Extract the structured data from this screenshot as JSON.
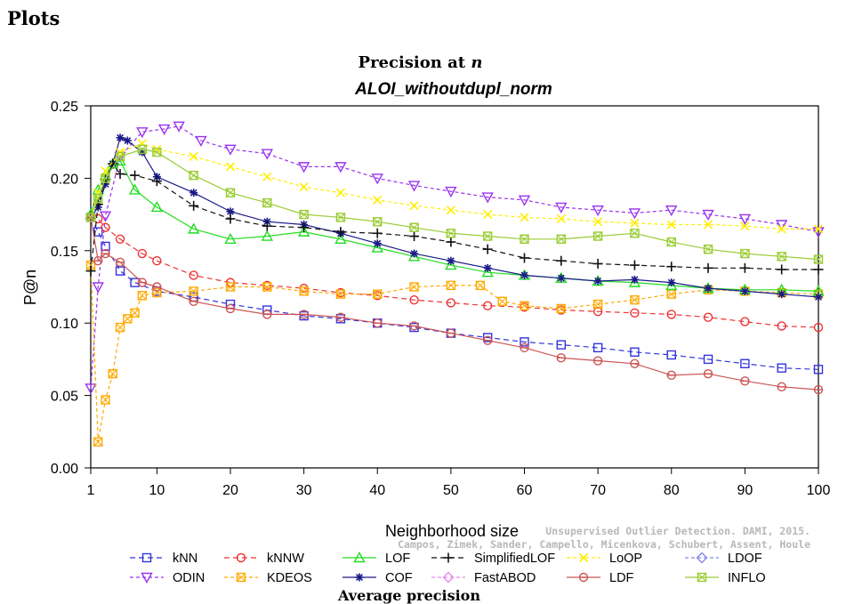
{
  "page": {
    "heading": "Plots"
  },
  "watermark": {
    "line1": "Unsupervised Outlier Detection. DAMI, 2015.",
    "line2": "Campos, Zimek, Sander, Campello, Micenkova, Schubert, Assent, Houle"
  },
  "chart_data": {
    "type": "line",
    "title_prefix": "Precision at ",
    "title_var": "n",
    "subtitle": "ALOI_withoutdupl_norm",
    "xlabel": "Neighborhood size",
    "ylabel": "P@n",
    "xlim": [
      1,
      100
    ],
    "ylim": [
      0,
      0.25
    ],
    "xticks": [
      1,
      10,
      20,
      30,
      40,
      50,
      60,
      70,
      80,
      90,
      100
    ],
    "yticks": [
      0.0,
      0.05,
      0.1,
      0.15,
      0.2,
      0.25
    ],
    "grid": false,
    "legend_position": "bottom",
    "series": [
      {
        "name": "kNN",
        "color": "#3333dd",
        "marker": "square",
        "dash": "6,4",
        "points": [
          [
            1,
            0.173
          ],
          [
            2,
            0.163
          ],
          [
            3,
            0.153
          ],
          [
            5,
            0.136
          ],
          [
            7,
            0.128
          ],
          [
            10,
            0.122
          ],
          [
            15,
            0.118
          ],
          [
            20,
            0.113
          ],
          [
            25,
            0.109
          ],
          [
            30,
            0.105
          ],
          [
            35,
            0.103
          ],
          [
            40,
            0.1
          ],
          [
            45,
            0.097
          ],
          [
            50,
            0.093
          ],
          [
            55,
            0.09
          ],
          [
            60,
            0.087
          ],
          [
            65,
            0.085
          ],
          [
            70,
            0.083
          ],
          [
            75,
            0.08
          ],
          [
            80,
            0.078
          ],
          [
            85,
            0.075
          ],
          [
            90,
            0.072
          ],
          [
            95,
            0.069
          ],
          [
            100,
            0.068
          ]
        ]
      },
      {
        "name": "ODIN",
        "color": "#9933ee",
        "marker": "triangle-down",
        "dash": "4,3",
        "points": [
          [
            1,
            0.055
          ],
          [
            2,
            0.125
          ],
          [
            3,
            0.174
          ],
          [
            5,
            0.215
          ],
          [
            8,
            0.232
          ],
          [
            11,
            0.234
          ],
          [
            13,
            0.236
          ],
          [
            16,
            0.226
          ],
          [
            20,
            0.22
          ],
          [
            25,
            0.217
          ],
          [
            30,
            0.208
          ],
          [
            35,
            0.208
          ],
          [
            40,
            0.2
          ],
          [
            45,
            0.195
          ],
          [
            50,
            0.191
          ],
          [
            55,
            0.187
          ],
          [
            60,
            0.185
          ],
          [
            65,
            0.18
          ],
          [
            70,
            0.178
          ],
          [
            75,
            0.176
          ],
          [
            80,
            0.178
          ],
          [
            85,
            0.175
          ],
          [
            90,
            0.172
          ],
          [
            95,
            0.168
          ],
          [
            100,
            0.163
          ]
        ]
      },
      {
        "name": "kNNW",
        "color": "#ee3333",
        "marker": "circle",
        "dash": "6,4",
        "points": [
          [
            1,
            0.173
          ],
          [
            2,
            0.172
          ],
          [
            3,
            0.166
          ],
          [
            5,
            0.158
          ],
          [
            8,
            0.148
          ],
          [
            10,
            0.143
          ],
          [
            15,
            0.133
          ],
          [
            20,
            0.128
          ],
          [
            25,
            0.126
          ],
          [
            30,
            0.124
          ],
          [
            35,
            0.121
          ],
          [
            40,
            0.119
          ],
          [
            45,
            0.116
          ],
          [
            50,
            0.114
          ],
          [
            55,
            0.112
          ],
          [
            60,
            0.111
          ],
          [
            65,
            0.109
          ],
          [
            70,
            0.108
          ],
          [
            75,
            0.107
          ],
          [
            80,
            0.106
          ],
          [
            85,
            0.104
          ],
          [
            90,
            0.101
          ],
          [
            95,
            0.098
          ],
          [
            100,
            0.097
          ]
        ]
      },
      {
        "name": "KDEOS",
        "color": "#ffaa00",
        "marker": "square-x",
        "dash": "4,3",
        "points": [
          [
            1,
            0.14
          ],
          [
            2,
            0.018
          ],
          [
            3,
            0.047
          ],
          [
            4,
            0.065
          ],
          [
            5,
            0.097
          ],
          [
            6,
            0.103
          ],
          [
            7,
            0.107
          ],
          [
            8,
            0.119
          ],
          [
            10,
            0.121
          ],
          [
            15,
            0.122
          ],
          [
            20,
            0.125
          ],
          [
            25,
            0.125
          ],
          [
            30,
            0.122
          ],
          [
            35,
            0.12
          ],
          [
            40,
            0.12
          ],
          [
            45,
            0.125
          ],
          [
            50,
            0.126
          ],
          [
            54,
            0.126
          ],
          [
            57,
            0.115
          ],
          [
            60,
            0.112
          ],
          [
            65,
            0.11
          ],
          [
            70,
            0.113
          ],
          [
            75,
            0.116
          ],
          [
            80,
            0.12
          ],
          [
            85,
            0.123
          ],
          [
            90,
            0.122
          ],
          [
            95,
            0.121
          ],
          [
            100,
            0.12
          ]
        ]
      },
      {
        "name": "LOF",
        "color": "#22dd22",
        "marker": "triangle-up",
        "dash": "",
        "points": [
          [
            1,
            0.175
          ],
          [
            2,
            0.192
          ],
          [
            3,
            0.202
          ],
          [
            4,
            0.21
          ],
          [
            5,
            0.212
          ],
          [
            7,
            0.192
          ],
          [
            10,
            0.18
          ],
          [
            15,
            0.165
          ],
          [
            20,
            0.158
          ],
          [
            25,
            0.16
          ],
          [
            30,
            0.163
          ],
          [
            35,
            0.158
          ],
          [
            40,
            0.152
          ],
          [
            45,
            0.146
          ],
          [
            50,
            0.14
          ],
          [
            55,
            0.135
          ],
          [
            60,
            0.133
          ],
          [
            65,
            0.131
          ],
          [
            70,
            0.129
          ],
          [
            75,
            0.128
          ],
          [
            80,
            0.126
          ],
          [
            85,
            0.124
          ],
          [
            90,
            0.123
          ],
          [
            95,
            0.123
          ],
          [
            100,
            0.122
          ]
        ]
      },
      {
        "name": "COF",
        "color": "#1a1a88",
        "marker": "star",
        "dash": "",
        "points": [
          [
            1,
            0.173
          ],
          [
            2,
            0.18
          ],
          [
            3,
            0.196
          ],
          [
            4,
            0.21
          ],
          [
            5,
            0.228
          ],
          [
            6,
            0.226
          ],
          [
            8,
            0.218
          ],
          [
            10,
            0.201
          ],
          [
            15,
            0.19
          ],
          [
            20,
            0.177
          ],
          [
            25,
            0.17
          ],
          [
            30,
            0.168
          ],
          [
            35,
            0.162
          ],
          [
            40,
            0.155
          ],
          [
            45,
            0.148
          ],
          [
            50,
            0.143
          ],
          [
            55,
            0.138
          ],
          [
            60,
            0.133
          ],
          [
            65,
            0.131
          ],
          [
            70,
            0.129
          ],
          [
            75,
            0.13
          ],
          [
            80,
            0.128
          ],
          [
            85,
            0.124
          ],
          [
            90,
            0.122
          ],
          [
            95,
            0.12
          ],
          [
            100,
            0.118
          ]
        ]
      },
      {
        "name": "SimplifiedLOF",
        "color": "#111111",
        "marker": "plus",
        "dash": "6,4",
        "points": [
          [
            1,
            0.136
          ],
          [
            2,
            0.182
          ],
          [
            3,
            0.199
          ],
          [
            4,
            0.21
          ],
          [
            5,
            0.203
          ],
          [
            7,
            0.202
          ],
          [
            10,
            0.198
          ],
          [
            15,
            0.181
          ],
          [
            20,
            0.172
          ],
          [
            25,
            0.167
          ],
          [
            30,
            0.166
          ],
          [
            35,
            0.163
          ],
          [
            40,
            0.162
          ],
          [
            45,
            0.16
          ],
          [
            50,
            0.156
          ],
          [
            55,
            0.151
          ],
          [
            60,
            0.145
          ],
          [
            65,
            0.143
          ],
          [
            70,
            0.141
          ],
          [
            75,
            0.14
          ],
          [
            80,
            0.139
          ],
          [
            85,
            0.138
          ],
          [
            90,
            0.138
          ],
          [
            95,
            0.137
          ],
          [
            100,
            0.137
          ]
        ]
      },
      {
        "name": "FastABOD",
        "color": "#ee88ee",
        "marker": "diamond",
        "dash": "4,3",
        "points": []
      },
      {
        "name": "LoOP",
        "color": "#ffee00",
        "marker": "x",
        "dash": "4,3",
        "points": [
          [
            1,
            0.173
          ],
          [
            2,
            0.19
          ],
          [
            3,
            0.205
          ],
          [
            5,
            0.218
          ],
          [
            8,
            0.224
          ],
          [
            10,
            0.22
          ],
          [
            15,
            0.215
          ],
          [
            20,
            0.208
          ],
          [
            25,
            0.201
          ],
          [
            30,
            0.194
          ],
          [
            35,
            0.19
          ],
          [
            40,
            0.185
          ],
          [
            45,
            0.181
          ],
          [
            50,
            0.178
          ],
          [
            55,
            0.175
          ],
          [
            60,
            0.173
          ],
          [
            65,
            0.172
          ],
          [
            70,
            0.17
          ],
          [
            75,
            0.169
          ],
          [
            80,
            0.168
          ],
          [
            85,
            0.168
          ],
          [
            90,
            0.167
          ],
          [
            95,
            0.165
          ],
          [
            100,
            0.165
          ]
        ]
      },
      {
        "name": "LDF",
        "color": "#cc5555",
        "marker": "circle-line",
        "dash": "",
        "points": [
          [
            1,
            0.173
          ],
          [
            2,
            0.143
          ],
          [
            3,
            0.148
          ],
          [
            5,
            0.142
          ],
          [
            8,
            0.128
          ],
          [
            10,
            0.125
          ],
          [
            15,
            0.115
          ],
          [
            20,
            0.11
          ],
          [
            25,
            0.106
          ],
          [
            30,
            0.106
          ],
          [
            35,
            0.104
          ],
          [
            40,
            0.1
          ],
          [
            45,
            0.098
          ],
          [
            50,
            0.093
          ],
          [
            55,
            0.088
          ],
          [
            60,
            0.083
          ],
          [
            65,
            0.076
          ],
          [
            70,
            0.074
          ],
          [
            75,
            0.072
          ],
          [
            80,
            0.064
          ],
          [
            85,
            0.065
          ],
          [
            90,
            0.06
          ],
          [
            95,
            0.056
          ],
          [
            100,
            0.054
          ]
        ]
      },
      {
        "name": "LDOF",
        "color": "#8888ee",
        "marker": "diamond",
        "dash": "4,3",
        "points": []
      },
      {
        "name": "INFLO",
        "color": "#99cc33",
        "marker": "square-x",
        "dash": "",
        "points": [
          [
            1,
            0.173
          ],
          [
            2,
            0.186
          ],
          [
            3,
            0.2
          ],
          [
            5,
            0.215
          ],
          [
            8,
            0.22
          ],
          [
            10,
            0.218
          ],
          [
            15,
            0.202
          ],
          [
            20,
            0.19
          ],
          [
            25,
            0.183
          ],
          [
            30,
            0.175
          ],
          [
            35,
            0.173
          ],
          [
            40,
            0.17
          ],
          [
            45,
            0.166
          ],
          [
            50,
            0.162
          ],
          [
            55,
            0.16
          ],
          [
            60,
            0.158
          ],
          [
            65,
            0.158
          ],
          [
            70,
            0.16
          ],
          [
            75,
            0.162
          ],
          [
            80,
            0.156
          ],
          [
            85,
            0.151
          ],
          [
            90,
            0.148
          ],
          [
            95,
            0.146
          ],
          [
            100,
            0.144
          ]
        ]
      }
    ]
  },
  "cut_text": "Average precision"
}
